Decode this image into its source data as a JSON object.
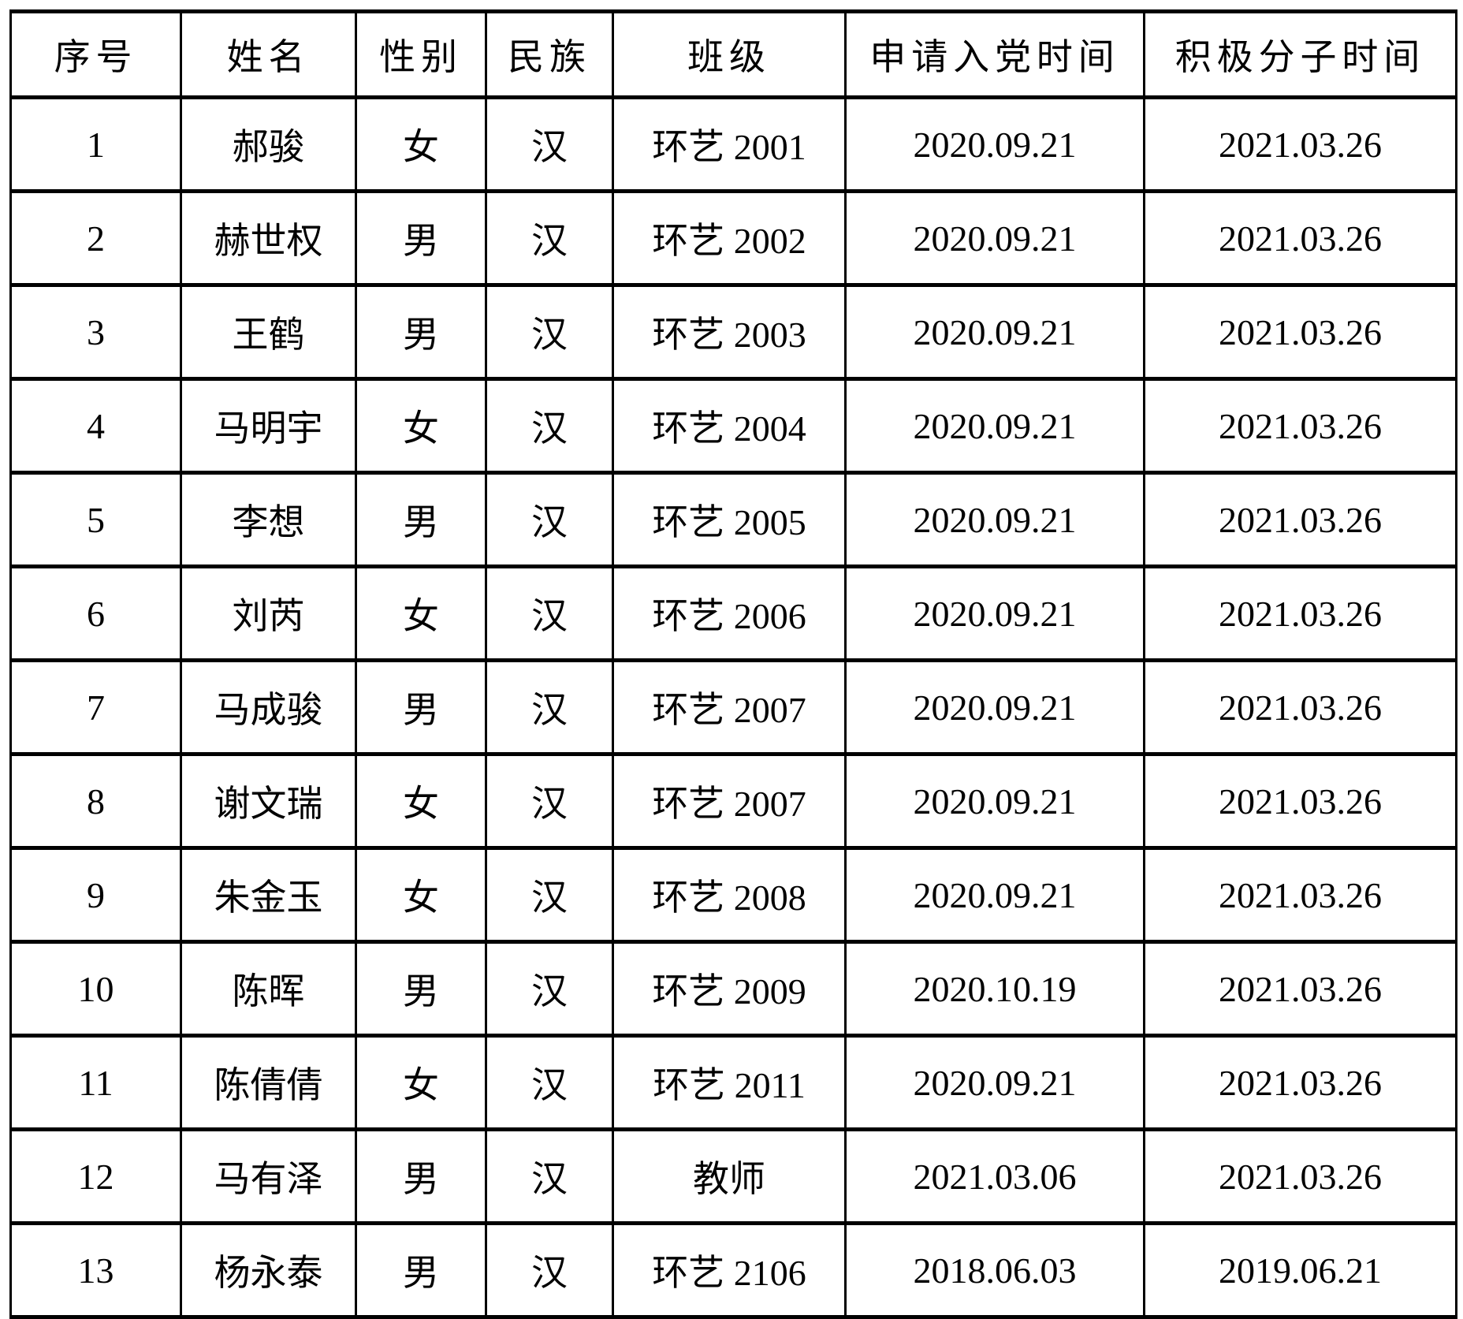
{
  "table": {
    "columns": [
      {
        "key": "index",
        "label": "序号"
      },
      {
        "key": "name",
        "label": "姓名"
      },
      {
        "key": "gender",
        "label": "性别"
      },
      {
        "key": "ethnicity",
        "label": "民族"
      },
      {
        "key": "class",
        "label": "班级"
      },
      {
        "key": "apply_date",
        "label": "申请入党时间"
      },
      {
        "key": "activist_date",
        "label": "积极分子时间"
      }
    ],
    "rows": [
      [
        "1",
        "郝骏",
        "女",
        "汉",
        "环艺 2001",
        "2020.09.21",
        "2021.03.26"
      ],
      [
        "2",
        "赫世权",
        "男",
        "汉",
        "环艺 2002",
        "2020.09.21",
        "2021.03.26"
      ],
      [
        "3",
        "王鹤",
        "男",
        "汉",
        "环艺 2003",
        "2020.09.21",
        "2021.03.26"
      ],
      [
        "4",
        "马明宇",
        "女",
        "汉",
        "环艺 2004",
        "2020.09.21",
        "2021.03.26"
      ],
      [
        "5",
        "李想",
        "男",
        "汉",
        "环艺 2005",
        "2020.09.21",
        "2021.03.26"
      ],
      [
        "6",
        "刘芮",
        "女",
        "汉",
        "环艺 2006",
        "2020.09.21",
        "2021.03.26"
      ],
      [
        "7",
        "马成骏",
        "男",
        "汉",
        "环艺 2007",
        "2020.09.21",
        "2021.03.26"
      ],
      [
        "8",
        "谢文瑞",
        "女",
        "汉",
        "环艺 2007",
        "2020.09.21",
        "2021.03.26"
      ],
      [
        "9",
        "朱金玉",
        "女",
        "汉",
        "环艺 2008",
        "2020.09.21",
        "2021.03.26"
      ],
      [
        "10",
        "陈晖",
        "男",
        "汉",
        "环艺 2009",
        "2020.10.19",
        "2021.03.26"
      ],
      [
        "11",
        "陈倩倩",
        "女",
        "汉",
        "环艺 2011",
        "2020.09.21",
        "2021.03.26"
      ],
      [
        "12",
        "马有泽",
        "男",
        "汉",
        "教师",
        "2021.03.06",
        "2021.03.26"
      ],
      [
        "13",
        "杨永泰",
        "男",
        "汉",
        "环艺 2106",
        "2018.06.03",
        "2019.06.21"
      ]
    ]
  },
  "colors": {
    "background": "#ffffff",
    "border": "#000000",
    "text": "#000000"
  }
}
